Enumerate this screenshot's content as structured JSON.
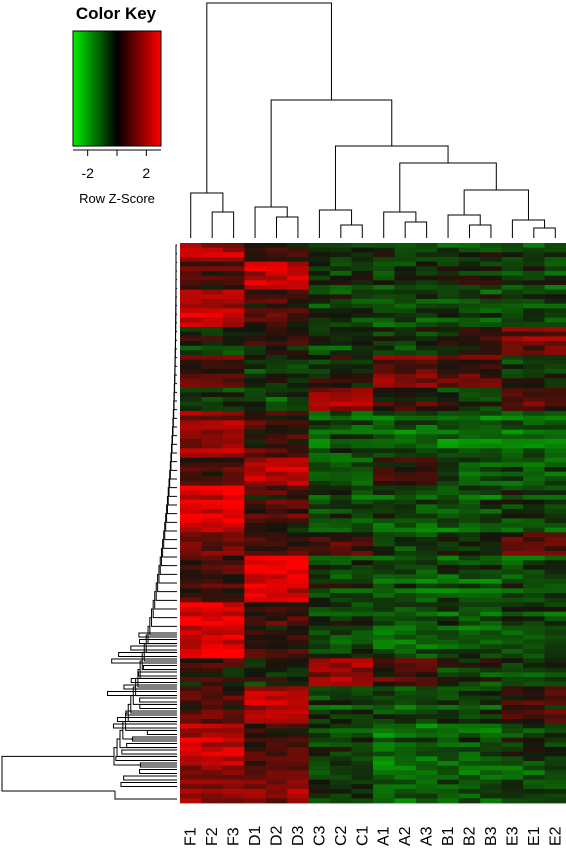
{
  "chart_data": {
    "type": "heatmap",
    "color_key": {
      "title": "Color Key",
      "label": "Row Z-Score",
      "ticks": [
        -2,
        2
      ],
      "tick_labels": [
        "-2",
        "2"
      ],
      "range": [
        -3,
        3
      ],
      "colors": {
        "low": "#00ee00",
        "mid": "#000000",
        "high": "#ff0000"
      }
    },
    "columns": [
      "F1",
      "F2",
      "F3",
      "D1",
      "D2",
      "D3",
      "C3",
      "C2",
      "C1",
      "A1",
      "A2",
      "A3",
      "B1",
      "B2",
      "B3",
      "E3",
      "E1",
      "E2"
    ],
    "column_groups": [
      "F",
      "F",
      "F",
      "D",
      "D",
      "D",
      "C",
      "C",
      "C",
      "A",
      "A",
      "A",
      "B",
      "B",
      "B",
      "E",
      "E",
      "E"
    ],
    "row_blocks": [
      {
        "rows": 4,
        "group_z": {
          "F": 1.6,
          "D": 0.3,
          "C": -0.4,
          "A": -0.5,
          "B": -0.5,
          "E": -0.4
        }
      },
      {
        "rows": 6,
        "group_z": {
          "F": 0.4,
          "D": 1.7,
          "C": -0.4,
          "A": -0.5,
          "B": -0.4,
          "E": -0.6
        }
      },
      {
        "rows": 8,
        "group_z": {
          "F": 1.9,
          "D": 0.6,
          "C": -0.5,
          "A": -0.6,
          "B": -0.6,
          "E": -0.6
        }
      },
      {
        "rows": 6,
        "group_z": {
          "F": -0.2,
          "D": 0.2,
          "C": -0.3,
          "A": -0.2,
          "B": 0.2,
          "E": 1.1
        }
      },
      {
        "rows": 7,
        "group_z": {
          "F": 0.5,
          "D": -0.4,
          "C": -0.1,
          "A": 0.9,
          "B": 0.6,
          "E": -0.3
        }
      },
      {
        "rows": 5,
        "group_z": {
          "F": -0.3,
          "D": -0.5,
          "C": 1.5,
          "A": 0.4,
          "B": -0.3,
          "E": 0.7
        }
      },
      {
        "rows": 10,
        "group_z": {
          "F": 1.5,
          "D": 0.6,
          "C": -0.7,
          "A": -0.8,
          "B": -0.9,
          "E": -0.8
        }
      },
      {
        "rows": 6,
        "group_z": {
          "F": 0.6,
          "D": 1.8,
          "C": -0.6,
          "A": 0.3,
          "B": -0.6,
          "E": -0.7
        }
      },
      {
        "rows": 10,
        "group_z": {
          "F": 2.0,
          "D": 0.4,
          "C": -0.6,
          "A": -0.7,
          "B": -0.7,
          "E": -0.6
        }
      },
      {
        "rows": 5,
        "group_z": {
          "F": 0.8,
          "D": 0.2,
          "C": 0.4,
          "A": -0.6,
          "B": -0.3,
          "E": 0.7
        }
      },
      {
        "rows": 10,
        "group_z": {
          "F": 0.5,
          "D": 2.2,
          "C": -0.5,
          "A": -0.8,
          "B": -0.7,
          "E": -0.7
        }
      },
      {
        "rows": 12,
        "group_z": {
          "F": 2.1,
          "D": 0.3,
          "C": -0.6,
          "A": -0.9,
          "B": -0.8,
          "E": -0.7
        }
      },
      {
        "rows": 6,
        "group_z": {
          "F": 0.2,
          "D": -0.2,
          "C": 1.4,
          "A": 0.5,
          "B": -0.4,
          "E": -0.5
        }
      },
      {
        "rows": 8,
        "group_z": {
          "F": 0.5,
          "D": 1.6,
          "C": -0.5,
          "A": -0.8,
          "B": -0.6,
          "E": 0.3
        }
      },
      {
        "rows": 9,
        "group_z": {
          "F": 1.9,
          "D": 0.6,
          "C": -0.4,
          "A": -1.0,
          "B": -0.7,
          "E": -0.3
        }
      },
      {
        "rows": 8,
        "group_z": {
          "F": 1.4,
          "D": 1.2,
          "C": -0.3,
          "A": -0.9,
          "B": -0.8,
          "E": -0.6
        }
      }
    ]
  }
}
